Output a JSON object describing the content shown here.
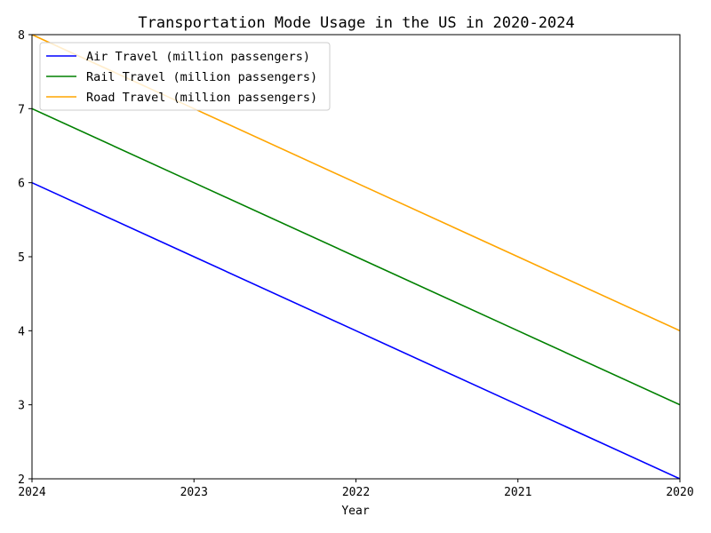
{
  "chart_data": {
    "type": "line",
    "title": "Transportation Mode Usage in the US in 2020-2024",
    "xlabel": "Year",
    "ylabel": "",
    "x": [
      "2024",
      "2023",
      "2022",
      "2021",
      "2020"
    ],
    "ylim": [
      2,
      8
    ],
    "yticks": [
      "2",
      "3",
      "4",
      "5",
      "6",
      "7",
      "8"
    ],
    "grid": false,
    "legend_position": "top-left",
    "series": [
      {
        "name": "Air Travel (million passengers)",
        "values": [
          6,
          5,
          4,
          3,
          2
        ],
        "color": "#0000ff"
      },
      {
        "name": "Rail Travel (million passengers)",
        "values": [
          7,
          6,
          5,
          4,
          3
        ],
        "color": "#008000"
      },
      {
        "name": "Road Travel (million passengers)",
        "values": [
          8,
          7,
          6,
          5,
          4
        ],
        "color": "#ffa500"
      }
    ]
  }
}
